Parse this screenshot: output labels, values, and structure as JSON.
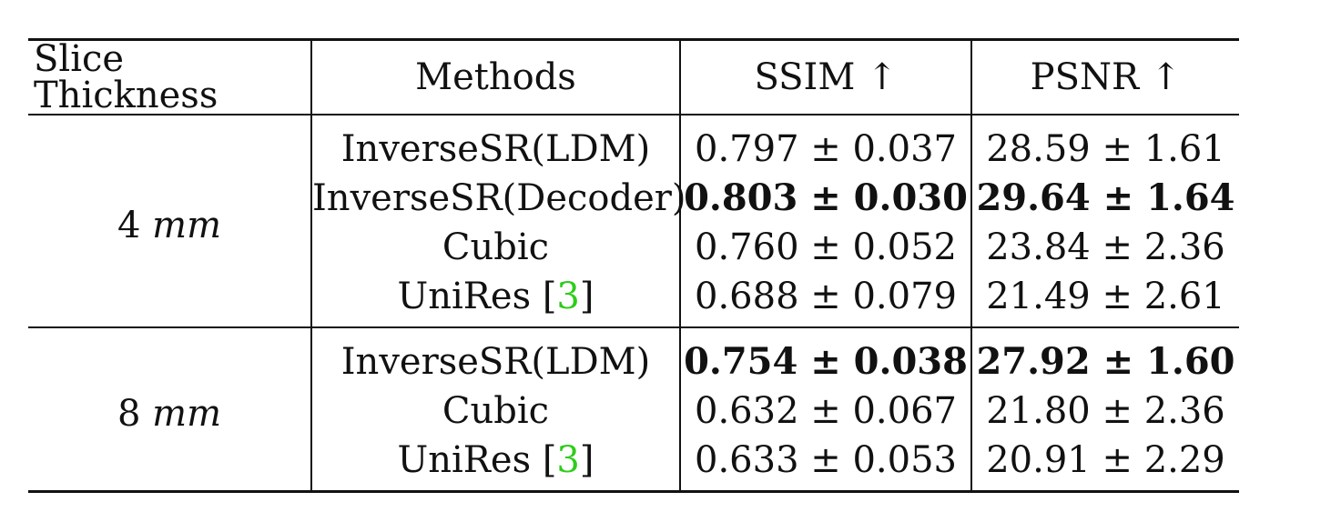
{
  "table": {
    "headers": {
      "slice_thickness": "Slice Thickness",
      "methods": "Methods",
      "ssim": "SSIM ↑",
      "psnr": "PSNR ↑"
    },
    "groups": [
      {
        "thickness_value": "4",
        "thickness_unit": "mm",
        "rows": [
          {
            "method": "InverseSR(LDM)",
            "cite": "",
            "ssim": "0.797 ± 0.037",
            "psnr": "28.59 ± 1.61",
            "ssim_bold": false,
            "psnr_bold": false
          },
          {
            "method": "InverseSR(Decoder)",
            "cite": "",
            "ssim": "0.803 ± 0.030",
            "psnr": "29.64 ± 1.64",
            "ssim_bold": true,
            "psnr_bold": true
          },
          {
            "method": "Cubic",
            "cite": "",
            "ssim": "0.760 ± 0.052",
            "psnr": "23.84 ± 2.36",
            "ssim_bold": false,
            "psnr_bold": false
          },
          {
            "method": "UniRes [",
            "cite": "3",
            "ssim": "0.688 ± 0.079",
            "psnr": "21.49 ± 2.61",
            "ssim_bold": false,
            "psnr_bold": false
          }
        ]
      },
      {
        "thickness_value": "8",
        "thickness_unit": "mm",
        "rows": [
          {
            "method": "InverseSR(LDM)",
            "cite": "",
            "ssim": "0.754 ± 0.038",
            "psnr": "27.92 ± 1.60",
            "ssim_bold": true,
            "psnr_bold": true
          },
          {
            "method": "Cubic",
            "cite": "",
            "ssim": "0.632 ± 0.067",
            "psnr": "21.80 ± 2.36",
            "ssim_bold": false,
            "psnr_bold": false
          },
          {
            "method": "UniRes [",
            "cite": "3",
            "ssim": "0.633 ± 0.053",
            "psnr": "20.91 ± 2.29",
            "ssim_bold": false,
            "psnr_bold": false
          }
        ]
      }
    ],
    "colors": {
      "text": "#111111",
      "citation": "#2ecc1a"
    }
  }
}
